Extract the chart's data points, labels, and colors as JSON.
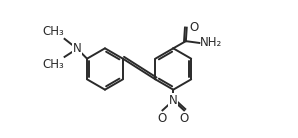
{
  "bg_color": "#ffffff",
  "line_color": "#2a2a2a",
  "line_width": 1.4,
  "font_size": 8.5,
  "r1x": 0.22,
  "r1y": 0.5,
  "r1r": 0.115,
  "r2x": 0.6,
  "r2y": 0.5,
  "r2r": 0.115,
  "xlim": [
    -0.02,
    0.95
  ],
  "ylim": [
    0.12,
    0.88
  ]
}
